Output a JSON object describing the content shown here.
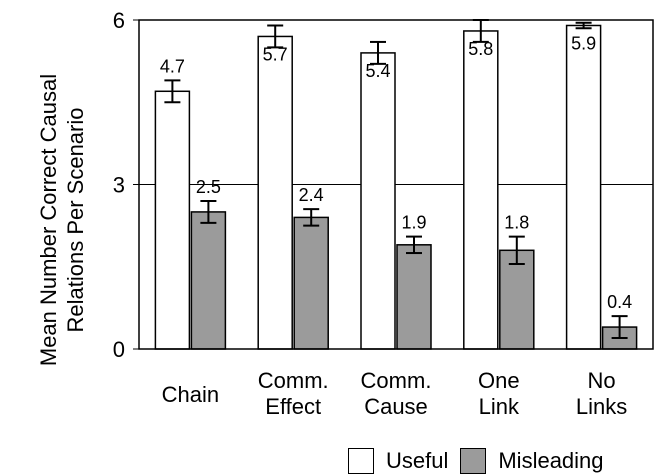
{
  "chart_data": {
    "type": "bar",
    "ylabel_lines": [
      "Mean Number Correct Causal",
      "Relations Per Scenario"
    ],
    "ylim": [
      0,
      6
    ],
    "yticks": [
      "0",
      "3",
      "6"
    ],
    "gridlines": [
      3
    ],
    "categories": [
      [
        "Chain"
      ],
      [
        "Comm.",
        "Effect"
      ],
      [
        "Comm.",
        "Cause"
      ],
      [
        "One",
        "Link"
      ],
      [
        "No",
        "Links"
      ]
    ],
    "series": [
      {
        "name": "Useful",
        "color": "#ffffff",
        "values": [
          4.7,
          5.7,
          5.4,
          5.8,
          5.9
        ],
        "labels": [
          "4.7",
          "5.7",
          "5.4",
          "5.8",
          "5.9"
        ],
        "errors": [
          0.2,
          0.2,
          0.2,
          0.2,
          0.05
        ]
      },
      {
        "name": "Misleading",
        "color": "#9b9b9b",
        "values": [
          2.5,
          2.4,
          1.9,
          1.8,
          0.4
        ],
        "labels": [
          "2.5",
          "2.4",
          "1.9",
          "1.8",
          "0.4"
        ],
        "errors": [
          0.2,
          0.15,
          0.15,
          0.25,
          0.2
        ]
      }
    ],
    "legend_position": "bottom-right"
  }
}
